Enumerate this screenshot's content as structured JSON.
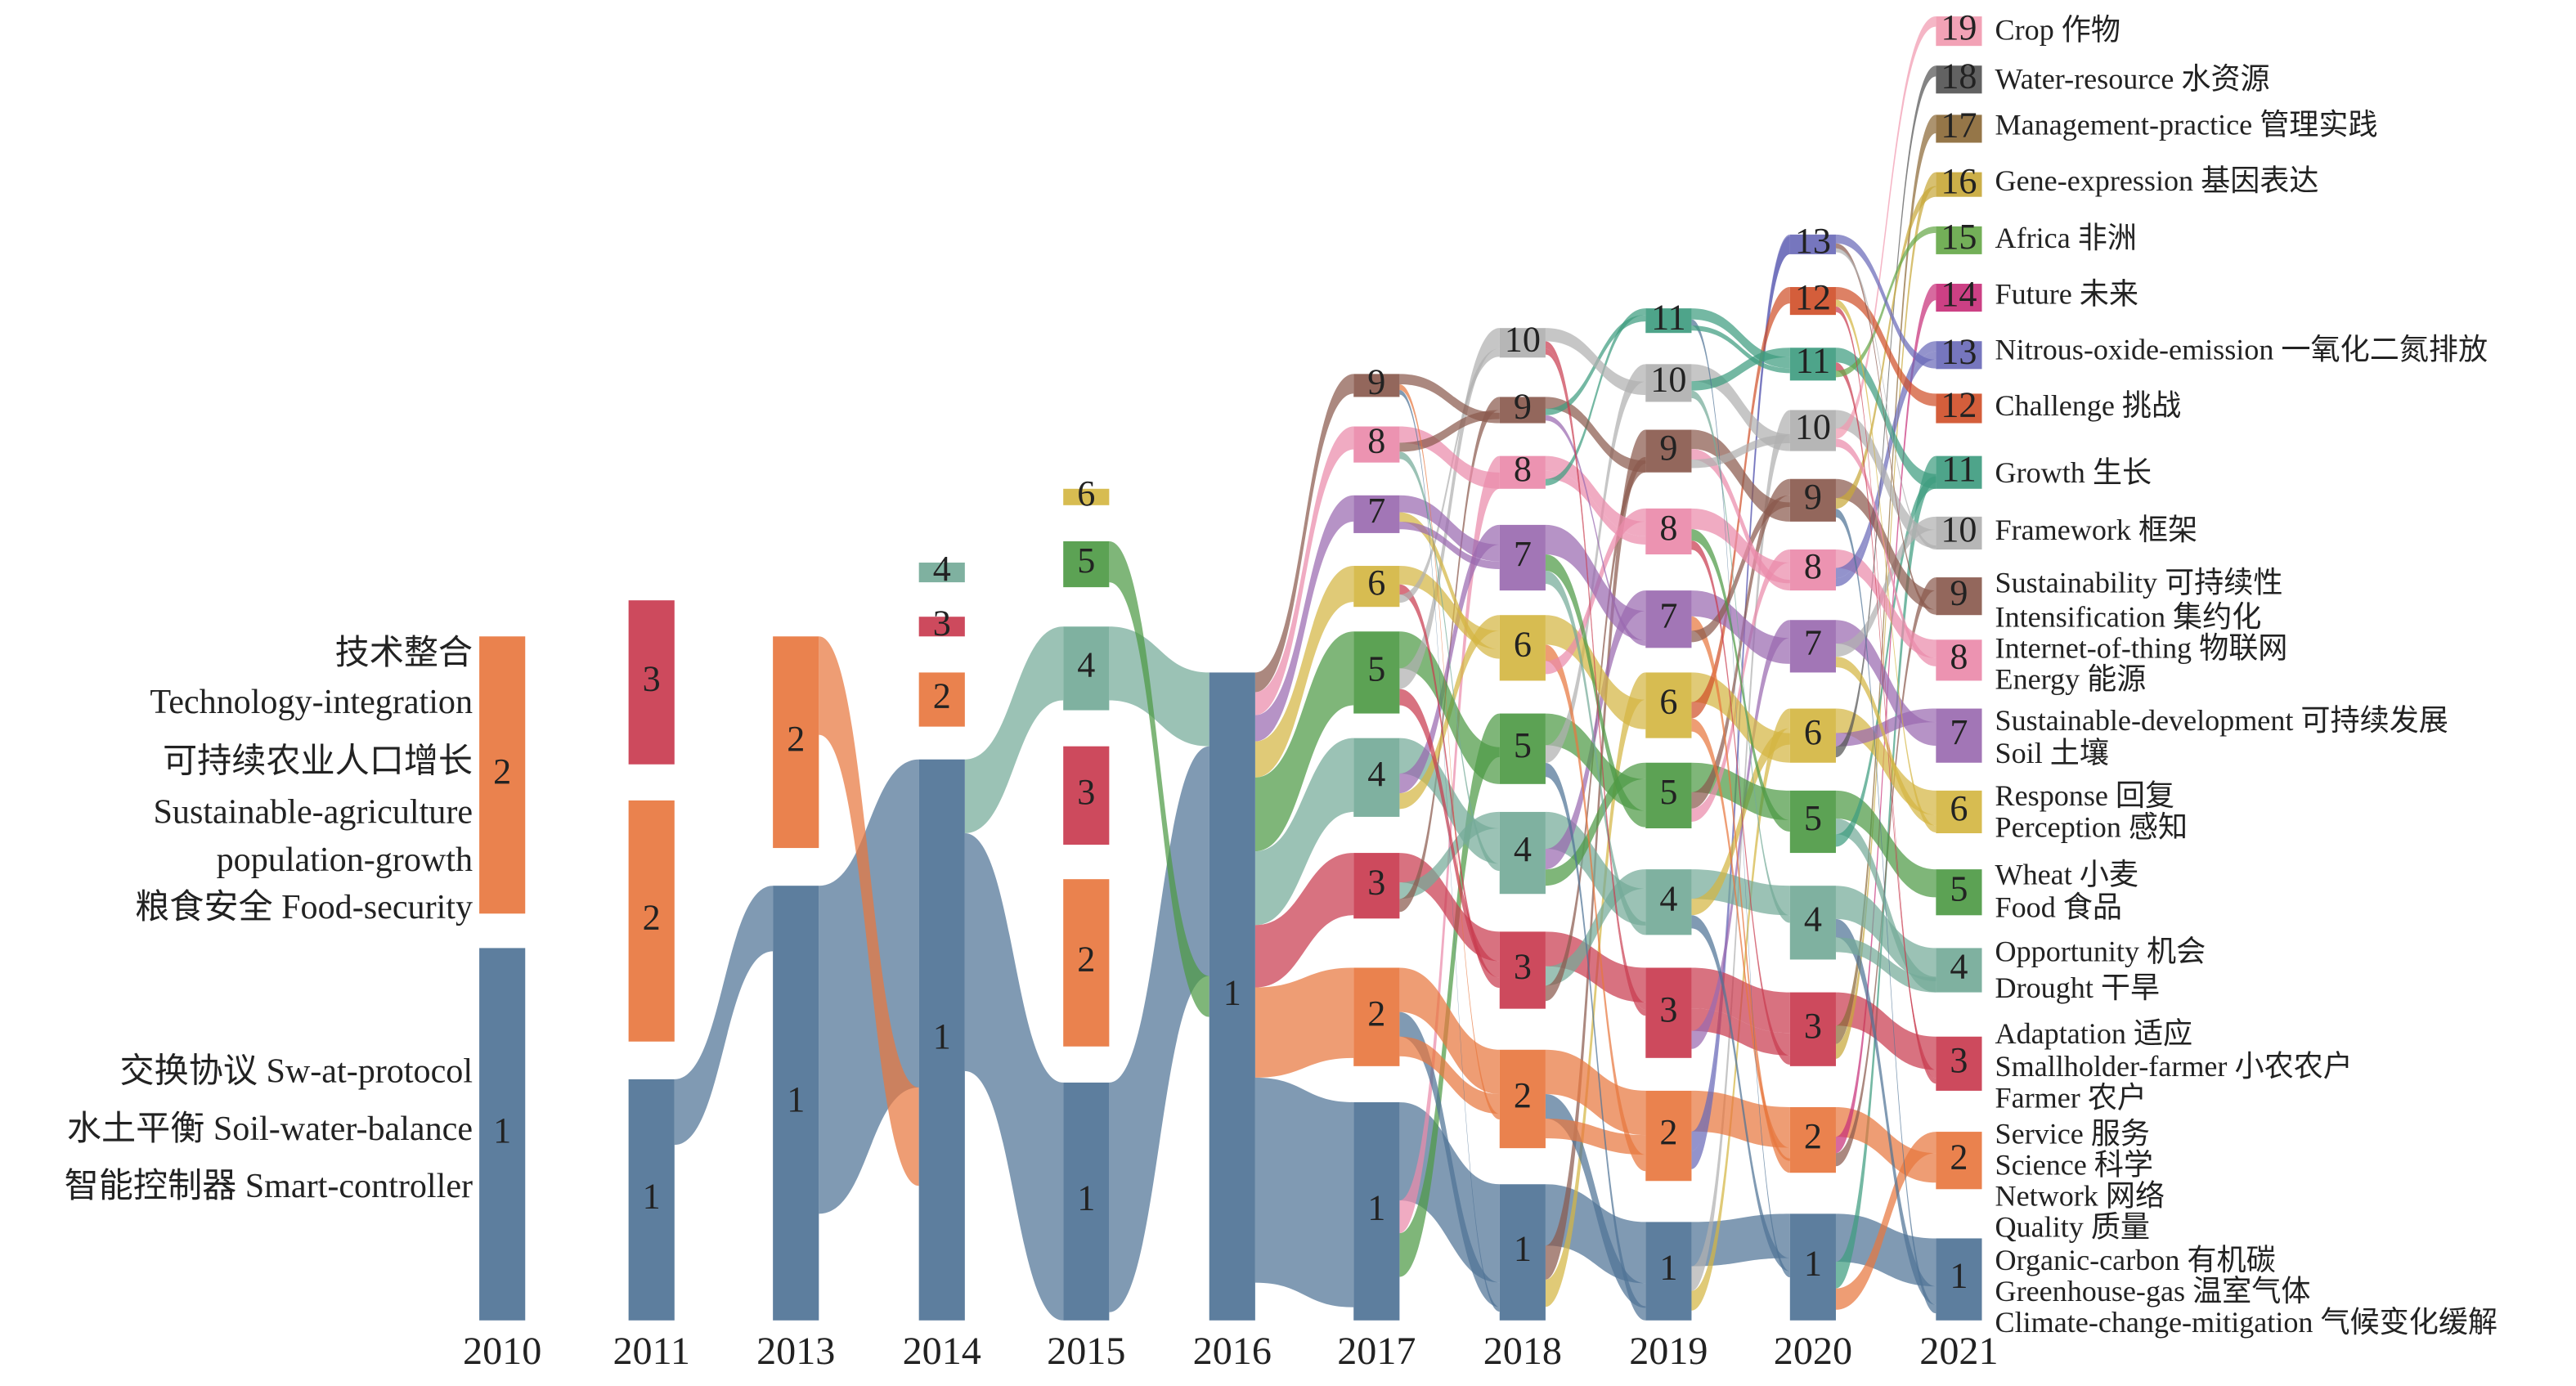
{
  "columns": [
    {
      "year": "2010",
      "nodes": [
        "1",
        "2"
      ]
    },
    {
      "year": "2011",
      "nodes": [
        "1",
        "2",
        "3"
      ]
    },
    {
      "year": "2013",
      "nodes": [
        "1",
        "2"
      ]
    },
    {
      "year": "2014",
      "nodes": [
        "1",
        "2",
        "3",
        "4"
      ]
    },
    {
      "year": "2015",
      "nodes": [
        "1",
        "2",
        "3",
        "4",
        "5",
        "6"
      ]
    },
    {
      "year": "2016",
      "nodes": [
        "1"
      ]
    },
    {
      "year": "2017",
      "nodes": [
        "1",
        "2",
        "3",
        "4",
        "5",
        "6",
        "7",
        "8",
        "9"
      ]
    },
    {
      "year": "2018",
      "nodes": [
        "1",
        "2",
        "3",
        "4",
        "5",
        "6",
        "7",
        "8",
        "9",
        "10"
      ]
    },
    {
      "year": "2019",
      "nodes": [
        "1",
        "2",
        "3",
        "4",
        "5",
        "6",
        "7",
        "8",
        "9",
        "10",
        "11"
      ]
    },
    {
      "year": "2020",
      "nodes": [
        "1",
        "2",
        "3",
        "4",
        "5",
        "6",
        "7",
        "8",
        "9",
        "10",
        "11",
        "12",
        "13"
      ]
    },
    {
      "year": "2021",
      "nodes": [
        "1",
        "2",
        "3",
        "4",
        "5",
        "6",
        "7",
        "8",
        "9",
        "10",
        "11",
        "12",
        "13",
        "14",
        "15",
        "16",
        "17",
        "18",
        "19"
      ]
    }
  ],
  "colors": [
    "#4f7396",
    "#e8773f",
    "#c93b4f",
    "#74aa98",
    "#4e9a45",
    "#d4b642",
    "#9a6ab0",
    "#ea8aaa",
    "#8a5a4e",
    "#b0b0b0",
    "#3f9c80",
    "#d0502a",
    "#6a6ab8",
    "#c8307a",
    "#67a84a",
    "#c8a83a",
    "#8c6a38",
    "#555555",
    "#f19ab0"
  ],
  "left_labels": [
    [
      "交换协议 Sw-at-protocol",
      "水土平衡 Soil-water-balance",
      "智能控制器 Smart-controller"
    ],
    [
      "技术整合",
      "Technology-integration",
      "可持续农业人口增长",
      "Sustainable-agriculture",
      "population-growth",
      "粮食安全 Food-security"
    ]
  ],
  "right_labels": [
    [
      "Quality 质量",
      "Organic-carbon 有机碳",
      "Greenhouse-gas 温室气体",
      "Climate-change-mitigation 气候变化缓解"
    ],
    [
      "Service 服务",
      "Science 科学",
      "Network 网络"
    ],
    [
      "Adaptation 适应",
      "Smallholder-farmer 小农农户",
      "Farmer 农户"
    ],
    [
      "Opportunity 机会",
      "Drought 干旱"
    ],
    [
      "Wheat 小麦",
      "Food 食品"
    ],
    [
      "Response 回复",
      "Perception 感知"
    ],
    [
      "Sustainable-development 可持续发展",
      "Soil 土壤"
    ],
    [
      "Internet-of-thing 物联网",
      "Energy 能源"
    ],
    [
      "Sustainability 可持续性",
      "Intensification 集约化"
    ],
    [
      "Framework 框架"
    ],
    [
      "Growth 生长"
    ],
    [
      "Challenge 挑战"
    ],
    [
      "Nitrous-oxide-emission 一氧化二氮排放"
    ],
    [
      "Future 未来"
    ],
    [
      "Africa 非洲"
    ],
    [
      "Gene-expression 基因表达"
    ],
    [
      "Management-practice 管理实践"
    ],
    [
      "Water-resource 水资源"
    ],
    [
      "Crop 作物"
    ]
  ]
}
